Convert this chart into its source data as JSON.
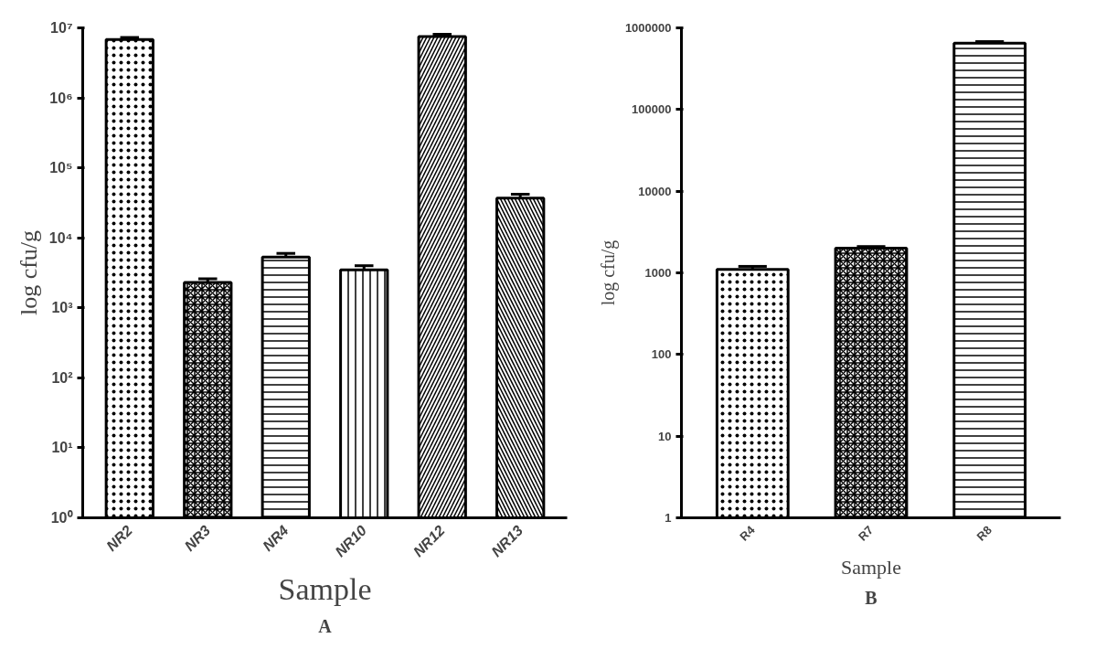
{
  "chart_data": [
    {
      "type": "bar",
      "xlabel": "Sample",
      "ylabel": "log cfu/g",
      "categories": [
        "NR2",
        "NR3",
        "NR4",
        "NR10",
        "NR12",
        "NR13"
      ],
      "values": [
        6800000,
        2300,
        5300,
        3500,
        7500000,
        37000
      ],
      "errors": [
        500000,
        300,
        700,
        500,
        600000,
        5000
      ],
      "colors": [
        "#ffffff",
        "#ffffff",
        "#ffffff",
        "#ffffff",
        "#ffffff",
        "#ffffff"
      ],
      "log": true,
      "ylim": [
        1,
        10000000
      ],
      "yticks": [
        {
          "value": 1,
          "label": "10⁰"
        },
        {
          "value": 10,
          "label": "10¹"
        },
        {
          "value": 100,
          "label": "10²"
        },
        {
          "value": 1000,
          "label": "10³"
        },
        {
          "value": 10000,
          "label": "10⁴"
        },
        {
          "value": 100000,
          "label": "10⁵"
        },
        {
          "value": 1000000,
          "label": "10⁶"
        },
        {
          "value": 10000000,
          "label": "10⁷"
        }
      ],
      "grid": false,
      "annotations": [
        "A"
      ]
    },
    {
      "type": "bar",
      "xlabel": "Sample",
      "ylabel": "log cfu/g",
      "categories": [
        "R4",
        "R7",
        "R8"
      ],
      "values": [
        1100,
        2000,
        650000
      ],
      "errors": [
        100,
        100,
        30000
      ],
      "colors": [
        "#ffffff",
        "#ffffff",
        "#ffffff"
      ],
      "log": true,
      "ylim": [
        1,
        1000000
      ],
      "yticks": [
        1,
        10,
        100,
        1000,
        10000,
        100000,
        1000000
      ],
      "grid": false,
      "annotations": [
        "B"
      ]
    }
  ]
}
